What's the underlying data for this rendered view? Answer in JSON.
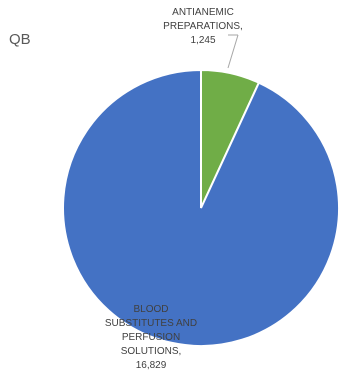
{
  "chart_data": {
    "type": "pie",
    "title": "QB",
    "slices": [
      {
        "name": "ANTIANEMIC PREPARATIONS",
        "value": 1245,
        "value_label": "1,245",
        "label_lines": [
          "ANTIANEMIC",
          "PREPARATIONS,",
          "1,245"
        ],
        "color": "#70ad47"
      },
      {
        "name": "BLOOD SUBSTITUTES AND PERFUSION SOLUTIONS",
        "value": 16829,
        "value_label": "16,829",
        "label_lines": [
          "BLOOD",
          "SUBSTITUTES AND",
          "PERFUSION",
          "SOLUTIONS,",
          "16,829"
        ],
        "color": "#4472c4"
      }
    ],
    "legend": "none"
  }
}
